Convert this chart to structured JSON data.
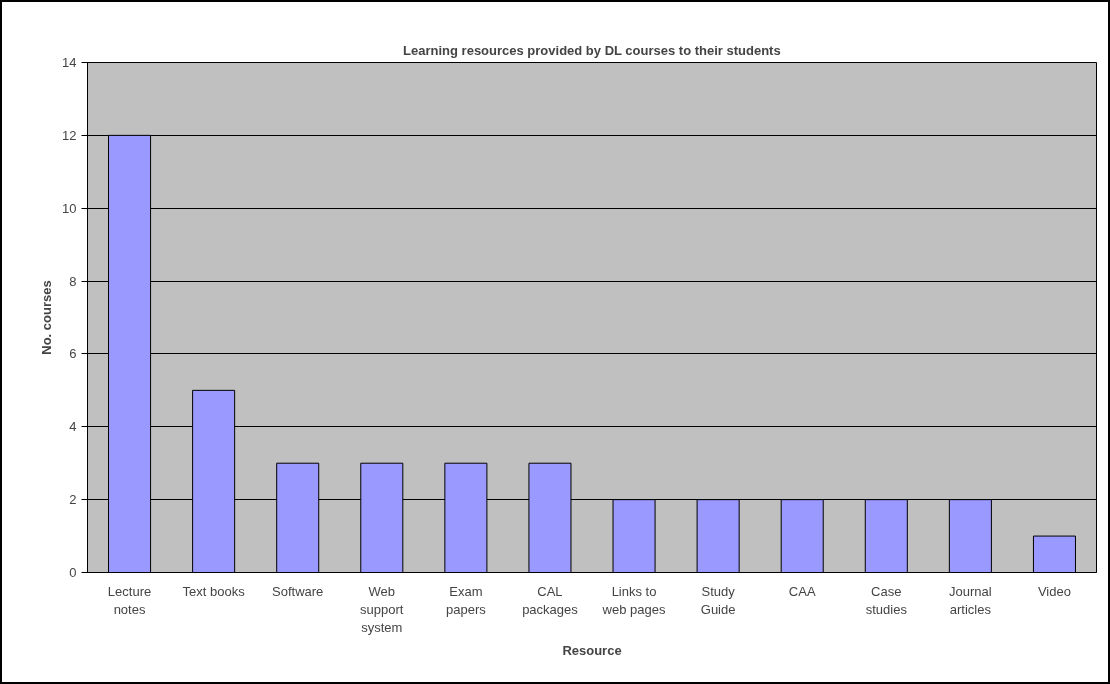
{
  "chart_data": {
    "type": "bar",
    "title": "Learning resources provided by DL courses to their students",
    "xlabel": "Resource",
    "ylabel": "No. courses",
    "categories": [
      "Lecture notes",
      "Text books",
      "Software",
      "Web support system",
      "Exam papers",
      "CAL packages",
      "Links to web pages",
      "Study Guide",
      "CAA",
      "Case studies",
      "Journal articles",
      "Video"
    ],
    "values": [
      12,
      5,
      3,
      3,
      3,
      3,
      2,
      2,
      2,
      2,
      2,
      1
    ],
    "color": "#9999ff",
    "ylim": [
      0,
      14
    ],
    "yticks": [
      0,
      2,
      4,
      6,
      8,
      10,
      12,
      14
    ],
    "grid": "y"
  }
}
